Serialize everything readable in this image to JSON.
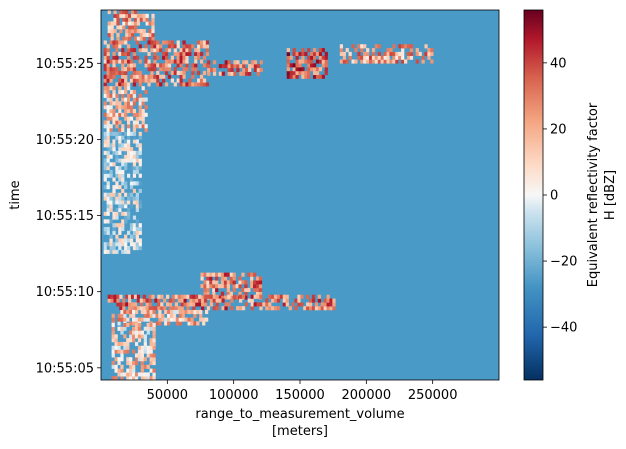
{
  "chart_data": {
    "type": "heatmap",
    "xlabel_line1": "range_to_measurement_volume",
    "xlabel_line2": "[meters]",
    "ylabel": "time",
    "colorbar_label_line1": "Equivalent reflectivity factor",
    "colorbar_label_line2": "H [dBZ]",
    "colormap": "RdBu_r",
    "background_color": "#4a9ac7",
    "colorbar_range": [
      -56,
      56
    ],
    "xlim": [
      0,
      300000
    ],
    "ylim": [
      "10:55:04.2",
      "10:55:28.5"
    ],
    "x_ticks": [
      {
        "value": 50000,
        "label": "50000"
      },
      {
        "value": 100000,
        "label": "100000"
      },
      {
        "value": 150000,
        "label": "150000"
      },
      {
        "value": 200000,
        "label": "200000"
      },
      {
        "value": 250000,
        "label": "250000"
      }
    ],
    "y_ticks": [
      {
        "value": 5,
        "label": "10:55:05"
      },
      {
        "value": 10,
        "label": "10:55:10"
      },
      {
        "value": 15,
        "label": "10:55:15"
      },
      {
        "value": 20,
        "label": "10:55:20"
      },
      {
        "value": 25,
        "label": "10:55:25"
      }
    ],
    "colorbar_ticks": [
      {
        "value": 40,
        "label": "40"
      },
      {
        "value": 20,
        "label": "20"
      },
      {
        "value": 0,
        "label": "0"
      },
      {
        "value": -20,
        "label": "−20"
      },
      {
        "value": -40,
        "label": "−40"
      }
    ],
    "echo_regions": [
      {
        "x0": 5000,
        "x1": 40000,
        "y0": 26.5,
        "y1": 28.5,
        "dbz": 22
      },
      {
        "x0": 2000,
        "x1": 80000,
        "y0": 23.5,
        "y1": 26.5,
        "dbz": 28
      },
      {
        "x0": 80000,
        "x1": 120000,
        "y0": 24.2,
        "y1": 25.0,
        "dbz": 30
      },
      {
        "x0": 140000,
        "x1": 170000,
        "y0": 24.0,
        "y1": 25.8,
        "dbz": 35
      },
      {
        "x0": 180000,
        "x1": 250000,
        "y0": 25.0,
        "y1": 26.2,
        "dbz": 22
      },
      {
        "x0": 2000,
        "x1": 35000,
        "y0": 20.5,
        "y1": 23.5,
        "dbz": 15
      },
      {
        "x0": 2000,
        "x1": 30000,
        "y0": 12.5,
        "y1": 20.5,
        "dbz": -5
      },
      {
        "x0": 75000,
        "x1": 120000,
        "y0": 9.5,
        "y1": 11.2,
        "dbz": 28
      },
      {
        "x0": 5000,
        "x1": 175000,
        "y0": 8.8,
        "y1": 9.6,
        "dbz": 30
      },
      {
        "x0": 8000,
        "x1": 80000,
        "y0": 7.8,
        "y1": 8.8,
        "dbz": 15
      },
      {
        "x0": 8000,
        "x1": 40000,
        "y0": 4.2,
        "y1": 7.8,
        "dbz": 12
      }
    ]
  }
}
